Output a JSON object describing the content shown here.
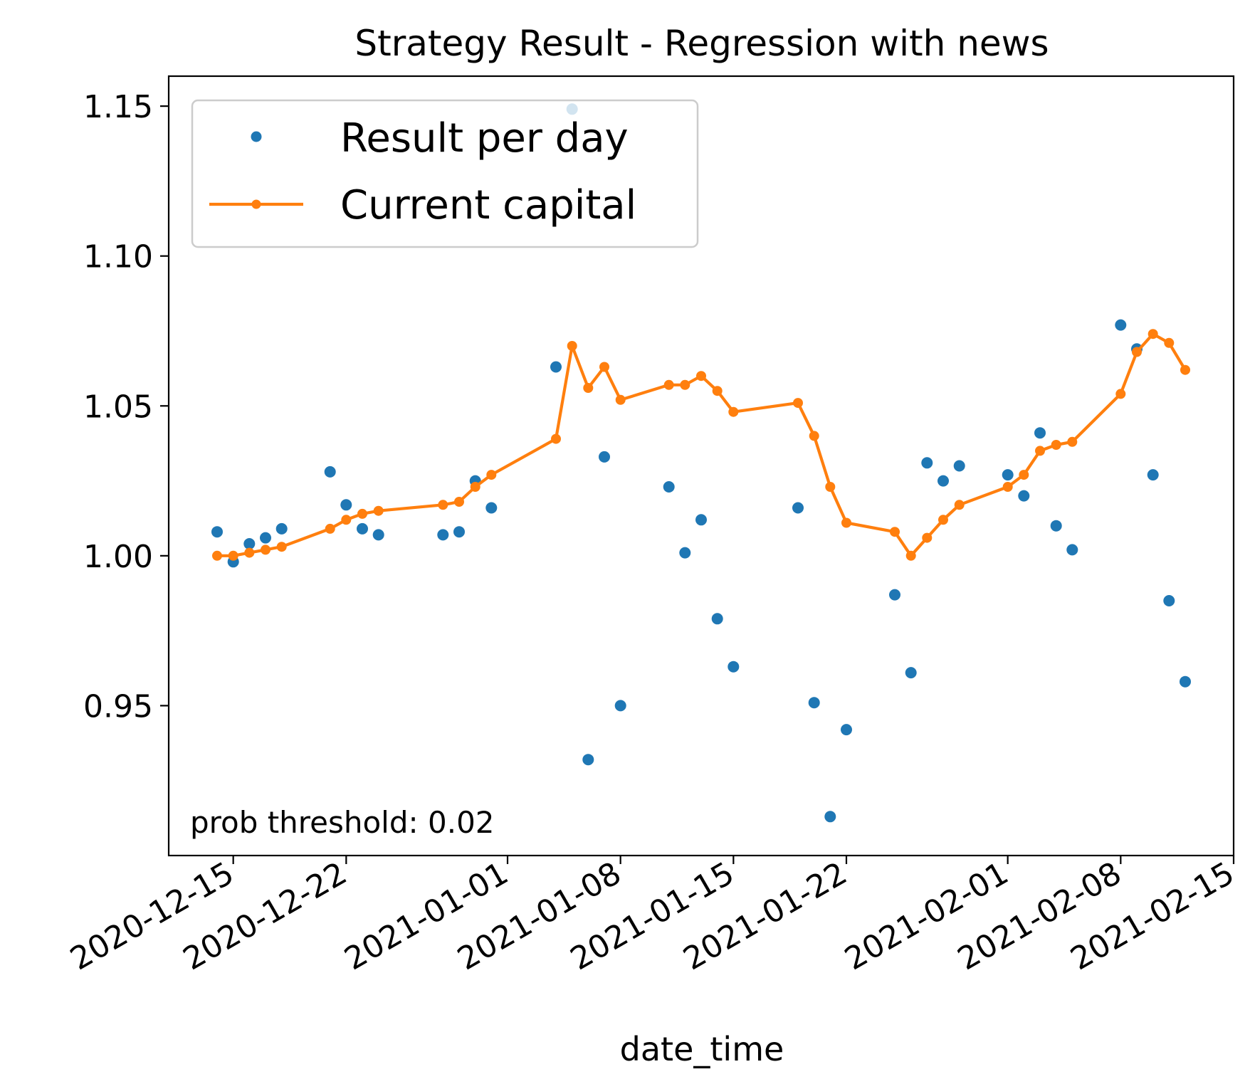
{
  "chart_data": {
    "type": "line",
    "title": "Strategy Result - Regression with news",
    "xlabel": "date_time",
    "ylabel": "",
    "xlim": [
      "2020-12-11",
      "2021-02-15"
    ],
    "ylim": [
      0.9,
      1.16
    ],
    "x_ticks": [
      "2020-12-15",
      "2020-12-22",
      "2021-01-01",
      "2021-01-08",
      "2021-01-15",
      "2021-01-22",
      "2021-02-01",
      "2021-02-08",
      "2021-02-15"
    ],
    "y_ticks": [
      0.95,
      1.0,
      1.05,
      1.1,
      1.15
    ],
    "y_tick_labels": [
      "0.95",
      "1.00",
      "1.05",
      "1.10",
      "1.15"
    ],
    "grid": false,
    "legend_position": "upper-left",
    "annotation": "prob threshold: 0.02",
    "series": [
      {
        "name": "Result per day",
        "style": "markers",
        "color": "#1f77b4",
        "points": [
          [
            "2020-12-14",
            1.008
          ],
          [
            "2020-12-15",
            0.998
          ],
          [
            "2020-12-16",
            1.004
          ],
          [
            "2020-12-17",
            1.006
          ],
          [
            "2020-12-18",
            1.009
          ],
          [
            "2020-12-21",
            1.028
          ],
          [
            "2020-12-22",
            1.017
          ],
          [
            "2020-12-23",
            1.009
          ],
          [
            "2020-12-24",
            1.007
          ],
          [
            "2020-12-28",
            1.007
          ],
          [
            "2020-12-29",
            1.008
          ],
          [
            "2020-12-30",
            1.025
          ],
          [
            "2020-12-31",
            1.016
          ],
          [
            "2021-01-04",
            1.063
          ],
          [
            "2021-01-05",
            1.149
          ],
          [
            "2021-01-06",
            0.932
          ],
          [
            "2021-01-07",
            1.033
          ],
          [
            "2021-01-08",
            0.95
          ],
          [
            "2021-01-11",
            1.023
          ],
          [
            "2021-01-12",
            1.001
          ],
          [
            "2021-01-13",
            1.012
          ],
          [
            "2021-01-14",
            0.979
          ],
          [
            "2021-01-15",
            0.963
          ],
          [
            "2021-01-19",
            1.016
          ],
          [
            "2021-01-20",
            0.951
          ],
          [
            "2021-01-21",
            0.913
          ],
          [
            "2021-01-22",
            0.942
          ],
          [
            "2021-01-25",
            0.987
          ],
          [
            "2021-01-26",
            0.961
          ],
          [
            "2021-01-27",
            1.031
          ],
          [
            "2021-01-28",
            1.025
          ],
          [
            "2021-01-29",
            1.03
          ],
          [
            "2021-02-01",
            1.027
          ],
          [
            "2021-02-02",
            1.02
          ],
          [
            "2021-02-03",
            1.041
          ],
          [
            "2021-02-04",
            1.01
          ],
          [
            "2021-02-05",
            1.002
          ],
          [
            "2021-02-08",
            1.077
          ],
          [
            "2021-02-09",
            1.069
          ],
          [
            "2021-02-10",
            1.027
          ],
          [
            "2021-02-11",
            0.985
          ],
          [
            "2021-02-12",
            0.958
          ]
        ]
      },
      {
        "name": "Current capital",
        "style": "line-markers",
        "color": "#ff7f0e",
        "points": [
          [
            "2020-12-14",
            1.0
          ],
          [
            "2020-12-15",
            1.0
          ],
          [
            "2020-12-16",
            1.001
          ],
          [
            "2020-12-17",
            1.002
          ],
          [
            "2020-12-18",
            1.003
          ],
          [
            "2020-12-21",
            1.009
          ],
          [
            "2020-12-22",
            1.012
          ],
          [
            "2020-12-23",
            1.014
          ],
          [
            "2020-12-24",
            1.015
          ],
          [
            "2020-12-28",
            1.017
          ],
          [
            "2020-12-29",
            1.018
          ],
          [
            "2020-12-30",
            1.023
          ],
          [
            "2020-12-31",
            1.027
          ],
          [
            "2021-01-04",
            1.039
          ],
          [
            "2021-01-05",
            1.07
          ],
          [
            "2021-01-06",
            1.056
          ],
          [
            "2021-01-07",
            1.063
          ],
          [
            "2021-01-08",
            1.052
          ],
          [
            "2021-01-11",
            1.057
          ],
          [
            "2021-01-12",
            1.057
          ],
          [
            "2021-01-13",
            1.06
          ],
          [
            "2021-01-14",
            1.055
          ],
          [
            "2021-01-15",
            1.048
          ],
          [
            "2021-01-19",
            1.051
          ],
          [
            "2021-01-20",
            1.04
          ],
          [
            "2021-01-21",
            1.023
          ],
          [
            "2021-01-22",
            1.011
          ],
          [
            "2021-01-25",
            1.008
          ],
          [
            "2021-01-26",
            1.0
          ],
          [
            "2021-01-27",
            1.006
          ],
          [
            "2021-01-28",
            1.012
          ],
          [
            "2021-01-29",
            1.017
          ],
          [
            "2021-02-01",
            1.023
          ],
          [
            "2021-02-02",
            1.027
          ],
          [
            "2021-02-03",
            1.035
          ],
          [
            "2021-02-04",
            1.037
          ],
          [
            "2021-02-05",
            1.038
          ],
          [
            "2021-02-08",
            1.054
          ],
          [
            "2021-02-09",
            1.068
          ],
          [
            "2021-02-10",
            1.074
          ],
          [
            "2021-02-11",
            1.071
          ],
          [
            "2021-02-12",
            1.062
          ]
        ]
      }
    ]
  }
}
